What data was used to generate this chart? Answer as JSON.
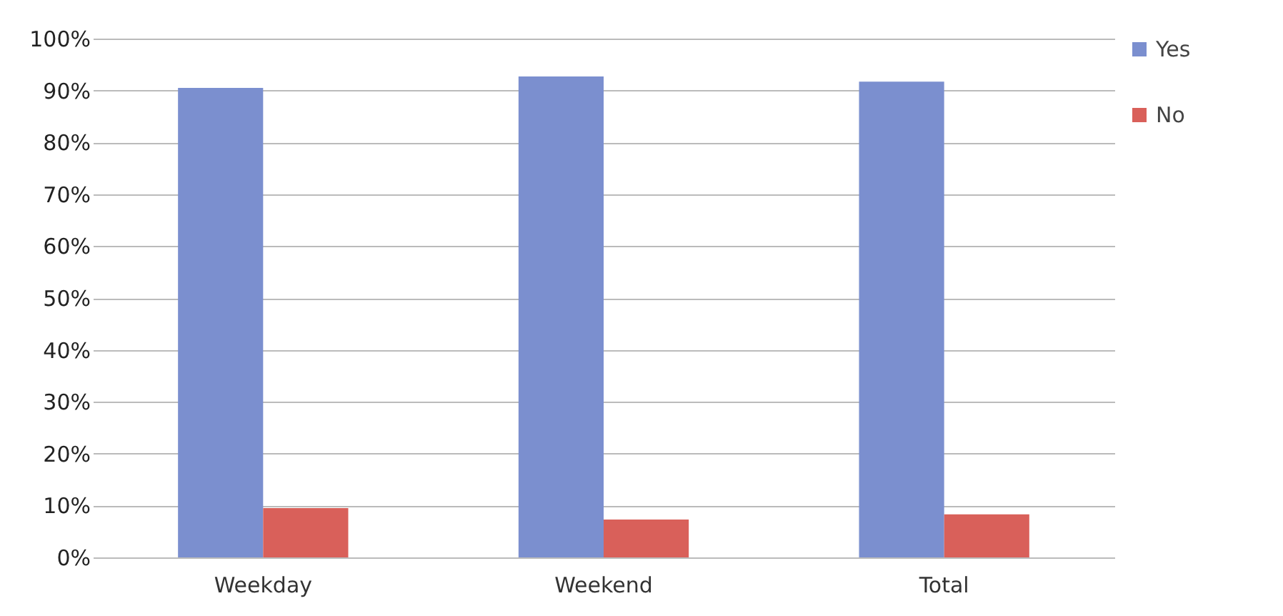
{
  "chart_data": {
    "type": "bar",
    "categories": [
      "Weekday",
      "Weekend",
      "Total"
    ],
    "series": [
      {
        "name": "Yes",
        "color": "#7b8fcf",
        "values": [
          90.5,
          92.7,
          91.7
        ]
      },
      {
        "name": "No",
        "color": "#d9605a",
        "values": [
          9.5,
          7.3,
          8.3
        ]
      }
    ],
    "ylim": [
      0,
      100
    ],
    "yticks": [
      {
        "value": 0,
        "label": "0%"
      },
      {
        "value": 10,
        "label": "10%"
      },
      {
        "value": 20,
        "label": "20%"
      },
      {
        "value": 30,
        "label": "30%"
      },
      {
        "value": 40,
        "label": "40%"
      },
      {
        "value": 50,
        "label": "50%"
      },
      {
        "value": 60,
        "label": "60%"
      },
      {
        "value": 70,
        "label": "70%"
      },
      {
        "value": 80,
        "label": "80%"
      },
      {
        "value": 90,
        "label": "90%"
      },
      {
        "value": 100,
        "label": "100%"
      }
    ],
    "grid": "y",
    "legend": "right"
  }
}
